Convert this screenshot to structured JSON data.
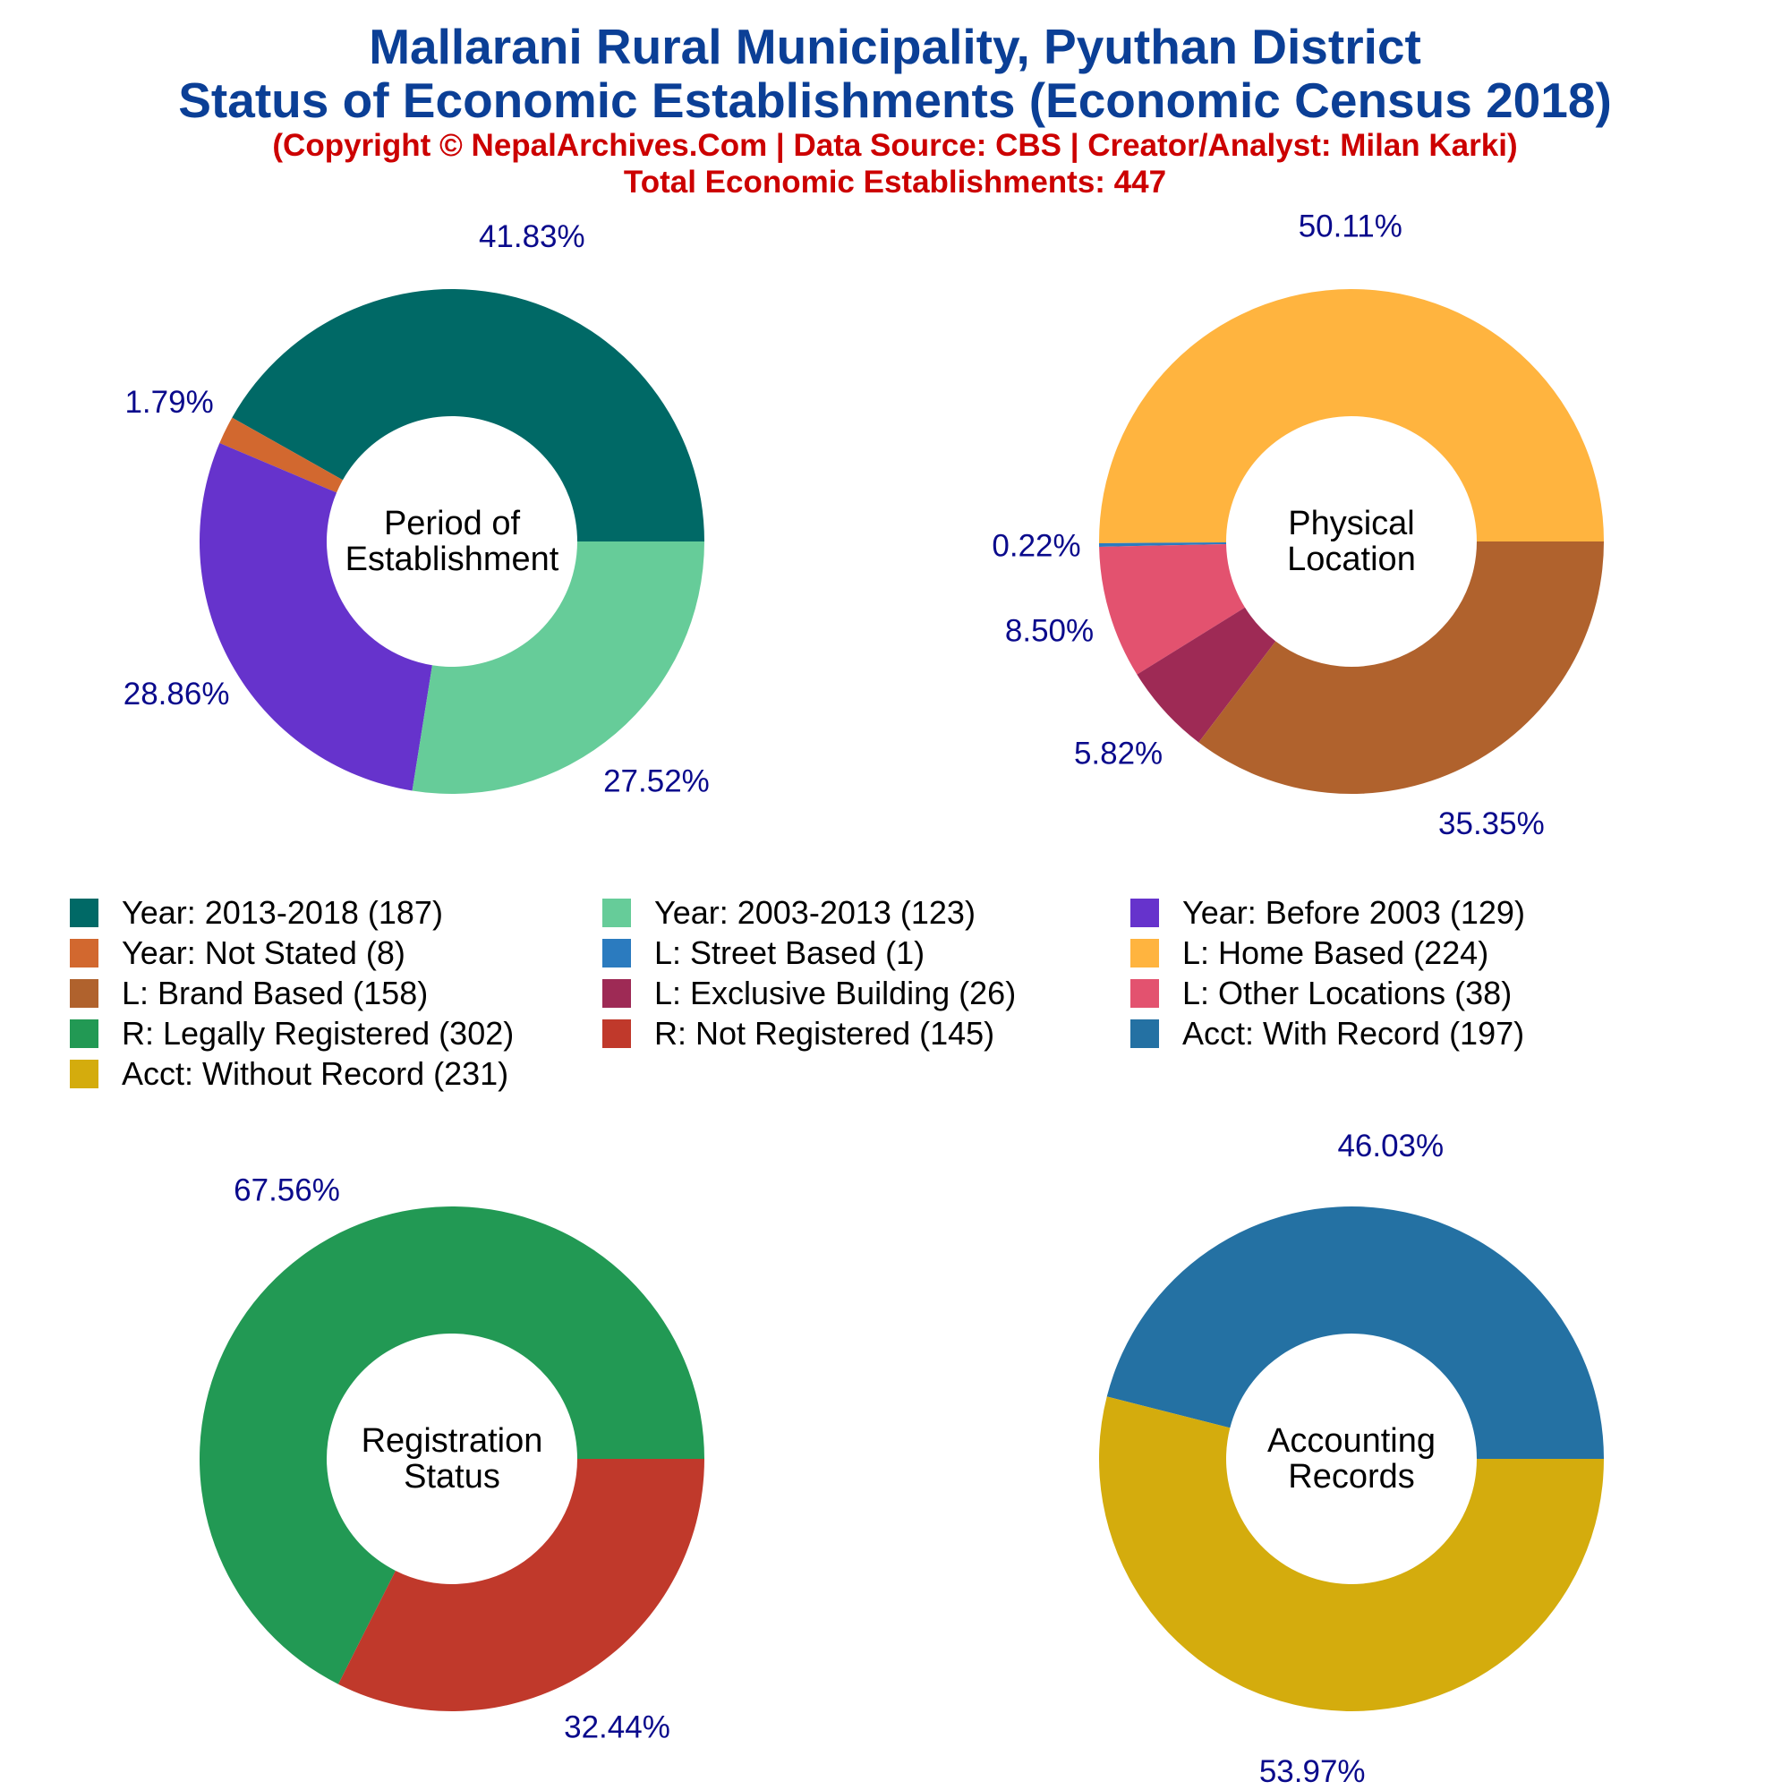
{
  "header": {
    "title_line1": "Mallarani Rural Municipality, Pyuthan District",
    "title_line2": "Status of Economic Establishments (Economic Census 2018)",
    "copyright": "(Copyright © NepalArchives.Com | Data Source: CBS | Creator/Analyst: Milan Karki)",
    "total": "Total Economic Establishments: 447"
  },
  "colors": {
    "title": "#0b3f96",
    "subtitle": "#cc0000",
    "pct_label": "#0a0a8c"
  },
  "chart_data": [
    {
      "type": "pie",
      "subtype": "donut",
      "center_label": [
        "Period of",
        "Establishment"
      ],
      "slices": [
        {
          "label": "Year: 2013-2018",
          "value": 187,
          "pct": "41.83%",
          "color": "#006966"
        },
        {
          "label": "Year: Not Stated",
          "value": 8,
          "pct": "1.79%",
          "color": "#d2682f"
        },
        {
          "label": "Year: Before 2003",
          "value": 129,
          "pct": "28.86%",
          "color": "#6633cc"
        },
        {
          "label": "Year: 2003-2013",
          "value": 123,
          "pct": "27.52%",
          "color": "#66cc99"
        }
      ]
    },
    {
      "type": "pie",
      "subtype": "donut",
      "center_label": [
        "Physical",
        "Location"
      ],
      "slices": [
        {
          "label": "L: Home Based",
          "value": 224,
          "pct": "50.11%",
          "color": "#ffb43f"
        },
        {
          "label": "L: Street Based",
          "value": 1,
          "pct": "0.22%",
          "color": "#2b7bbf"
        },
        {
          "label": "L: Other Locations",
          "value": 38,
          "pct": "8.50%",
          "color": "#e3526f"
        },
        {
          "label": "L: Exclusive Building",
          "value": 26,
          "pct": "5.82%",
          "color": "#9e2a55"
        },
        {
          "label": "L: Brand Based",
          "value": 158,
          "pct": "35.35%",
          "color": "#b0622d"
        }
      ]
    },
    {
      "type": "pie",
      "subtype": "donut",
      "center_label": [
        "Registration",
        "Status"
      ],
      "slices": [
        {
          "label": "R: Legally Registered",
          "value": 302,
          "pct": "67.56%",
          "color": "#229954"
        },
        {
          "label": "R: Not Registered",
          "value": 145,
          "pct": "32.44%",
          "color": "#c0392b"
        }
      ]
    },
    {
      "type": "pie",
      "subtype": "donut",
      "center_label": [
        "Accounting",
        "Records"
      ],
      "slices": [
        {
          "label": "Acct: With Record",
          "value": 197,
          "pct": "46.03%",
          "color": "#2471a3"
        },
        {
          "label": "Acct: Without Record",
          "value": 231,
          "pct": "53.97%",
          "color": "#d4ac0d"
        }
      ]
    }
  ],
  "legend": [
    {
      "text": "Year: 2013-2018 (187)",
      "color": "#006966"
    },
    {
      "text": "Year: 2003-2013 (123)",
      "color": "#66cc99"
    },
    {
      "text": "Year: Before 2003 (129)",
      "color": "#6633cc"
    },
    {
      "text": "Year: Not Stated (8)",
      "color": "#d2682f"
    },
    {
      "text": "L: Street Based (1)",
      "color": "#2b7bbf"
    },
    {
      "text": "L: Home Based (224)",
      "color": "#ffb43f"
    },
    {
      "text": "L: Brand Based (158)",
      "color": "#b0622d"
    },
    {
      "text": "L: Exclusive Building (26)",
      "color": "#9e2a55"
    },
    {
      "text": "L: Other Locations (38)",
      "color": "#e3526f"
    },
    {
      "text": "R: Legally Registered (302)",
      "color": "#229954"
    },
    {
      "text": "R: Not Registered (145)",
      "color": "#c0392b"
    },
    {
      "text": "Acct: With Record (197)",
      "color": "#2471a3"
    },
    {
      "text": "Acct: Without Record (231)",
      "color": "#d4ac0d"
    }
  ]
}
